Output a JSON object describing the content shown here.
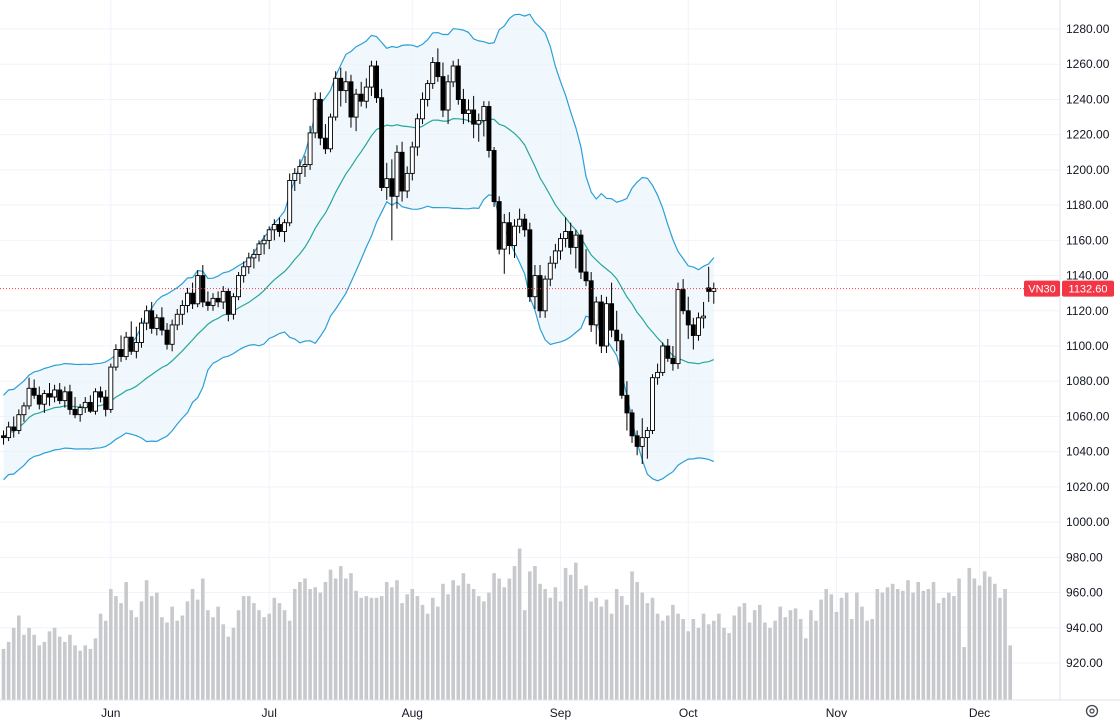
{
  "symbol": "VN30",
  "last_price_label": "1132.60",
  "colors": {
    "background": "#ffffff",
    "grid": "#f0f3fa",
    "band_fill": "#e8f3fb",
    "band_line": "#2a9fd6",
    "basis_line": "#26a69a",
    "candle": "#000000",
    "volume": "#c8c9cd",
    "tag": "#f23645",
    "price_line": "#f23645"
  },
  "chart_data": {
    "type": "candlestick",
    "y_axis": {
      "min": 905,
      "max": 1290,
      "ticks": [
        920,
        940,
        960,
        980,
        1000,
        1020,
        1040,
        1060,
        1080,
        1100,
        1120,
        1140,
        1160,
        1180,
        1200,
        1220,
        1240,
        1260,
        1280
      ],
      "tick_labels": [
        "920.00",
        "940.00",
        "960.00",
        "980.00",
        "1000.00",
        "1020.00",
        "1040.00",
        "1060.00",
        "1080.00",
        "1100.00",
        "1120.00",
        "1140.00",
        "1160.00",
        "1180.00",
        "1200.00",
        "1220.00",
        "1240.00",
        "1260.00",
        "1280.00"
      ]
    },
    "x_axis": {
      "months": [
        {
          "label": "Jun",
          "index": 21
        },
        {
          "label": "Jul",
          "index": 52
        },
        {
          "label": "Aug",
          "index": 80
        },
        {
          "label": "Sep",
          "index": 109
        },
        {
          "label": "Oct",
          "index": 134
        },
        {
          "label": "Nov",
          "index": 163
        },
        {
          "label": "Dec",
          "index": 191
        }
      ]
    },
    "last_price": 1132.6,
    "candles": {
      "columns": [
        "o",
        "h",
        "l",
        "c"
      ],
      "rows": [
        [
          1049,
          1052,
          1044,
          1048
        ],
        [
          1048,
          1057,
          1046,
          1054
        ],
        [
          1054,
          1060,
          1048,
          1052
        ],
        [
          1052,
          1064,
          1050,
          1061
        ],
        [
          1061,
          1068,
          1057,
          1066
        ],
        [
          1066,
          1082,
          1064,
          1076
        ],
        [
          1076,
          1081,
          1070,
          1072
        ],
        [
          1072,
          1077,
          1064,
          1067
        ],
        [
          1067,
          1075,
          1062,
          1073
        ],
        [
          1073,
          1079,
          1066,
          1071
        ],
        [
          1071,
          1078,
          1068,
          1075
        ],
        [
          1075,
          1079,
          1067,
          1069
        ],
        [
          1069,
          1077,
          1065,
          1074
        ],
        [
          1074,
          1078,
          1061,
          1064
        ],
        [
          1064,
          1071,
          1059,
          1061
        ],
        [
          1061,
          1067,
          1057,
          1065
        ],
        [
          1065,
          1071,
          1062,
          1068
        ],
        [
          1068,
          1072,
          1062,
          1063
        ],
        [
          1063,
          1076,
          1061,
          1074
        ],
        [
          1074,
          1077,
          1068,
          1071
        ],
        [
          1071,
          1075,
          1060,
          1064
        ],
        [
          1064,
          1090,
          1062,
          1088
        ],
        [
          1088,
          1101,
          1086,
          1098
        ],
        [
          1098,
          1106,
          1091,
          1094
        ],
        [
          1094,
          1108,
          1092,
          1105
        ],
        [
          1105,
          1114,
          1095,
          1097
        ],
        [
          1097,
          1111,
          1093,
          1102
        ],
        [
          1102,
          1116,
          1099,
          1113
        ],
        [
          1113,
          1123,
          1109,
          1120
        ],
        [
          1120,
          1125,
          1107,
          1110
        ],
        [
          1110,
          1118,
          1106,
          1116
        ],
        [
          1116,
          1122,
          1106,
          1109
        ],
        [
          1109,
          1113,
          1098,
          1101
        ],
        [
          1101,
          1115,
          1097,
          1112
        ],
        [
          1112,
          1121,
          1109,
          1118
        ],
        [
          1118,
          1126,
          1112,
          1123
        ],
        [
          1123,
          1133,
          1119,
          1130
        ],
        [
          1130,
          1136,
          1121,
          1124
        ],
        [
          1124,
          1143,
          1122,
          1140
        ],
        [
          1140,
          1146,
          1122,
          1125
        ],
        [
          1125,
          1131,
          1120,
          1123
        ],
        [
          1123,
          1130,
          1120,
          1127
        ],
        [
          1127,
          1131,
          1122,
          1125
        ],
        [
          1125,
          1134,
          1121,
          1131
        ],
        [
          1131,
          1133,
          1114,
          1118
        ],
        [
          1118,
          1130,
          1115,
          1128
        ],
        [
          1128,
          1142,
          1126,
          1140
        ],
        [
          1140,
          1148,
          1136,
          1145
        ],
        [
          1145,
          1153,
          1141,
          1150
        ],
        [
          1150,
          1155,
          1144,
          1152
        ],
        [
          1152,
          1160,
          1148,
          1158
        ],
        [
          1158,
          1163,
          1152,
          1160
        ],
        [
          1160,
          1168,
          1155,
          1166
        ],
        [
          1166,
          1172,
          1160,
          1169
        ],
        [
          1169,
          1173,
          1162,
          1165
        ],
        [
          1165,
          1172,
          1159,
          1170
        ],
        [
          1170,
          1198,
          1168,
          1194
        ],
        [
          1194,
          1201,
          1188,
          1198
        ],
        [
          1198,
          1206,
          1192,
          1202
        ],
        [
          1202,
          1208,
          1196,
          1203
        ],
        [
          1203,
          1225,
          1200,
          1221
        ],
        [
          1221,
          1244,
          1218,
          1240
        ],
        [
          1240,
          1244,
          1214,
          1218
        ],
        [
          1218,
          1226,
          1209,
          1212
        ],
        [
          1212,
          1232,
          1210,
          1230
        ],
        [
          1230,
          1256,
          1228,
          1252
        ],
        [
          1252,
          1258,
          1236,
          1245
        ],
        [
          1245,
          1256,
          1238,
          1250
        ],
        [
          1250,
          1254,
          1224,
          1230
        ],
        [
          1230,
          1246,
          1222,
          1243
        ],
        [
          1243,
          1250,
          1236,
          1239
        ],
        [
          1239,
          1252,
          1235,
          1247
        ],
        [
          1247,
          1262,
          1242,
          1259
        ],
        [
          1259,
          1262,
          1238,
          1241
        ],
        [
          1241,
          1246,
          1188,
          1190
        ],
        [
          1190,
          1204,
          1183,
          1195
        ],
        [
          1195,
          1206,
          1160,
          1185
        ],
        [
          1185,
          1214,
          1178,
          1210
        ],
        [
          1210,
          1216,
          1182,
          1188
        ],
        [
          1188,
          1202,
          1184,
          1198
        ],
        [
          1198,
          1216,
          1194,
          1213
        ],
        [
          1213,
          1232,
          1208,
          1229
        ],
        [
          1229,
          1244,
          1226,
          1240
        ],
        [
          1240,
          1251,
          1236,
          1249
        ],
        [
          1249,
          1264,
          1246,
          1261
        ],
        [
          1261,
          1269,
          1250,
          1253
        ],
        [
          1253,
          1261,
          1230,
          1234
        ],
        [
          1234,
          1254,
          1226,
          1250
        ],
        [
          1250,
          1262,
          1247,
          1259
        ],
        [
          1259,
          1263,
          1237,
          1240
        ],
        [
          1240,
          1246,
          1226,
          1232
        ],
        [
          1232,
          1240,
          1227,
          1234
        ],
        [
          1234,
          1242,
          1218,
          1226
        ],
        [
          1226,
          1232,
          1216,
          1228
        ],
        [
          1228,
          1239,
          1219,
          1236
        ],
        [
          1236,
          1239,
          1207,
          1211
        ],
        [
          1211,
          1213,
          1179,
          1182
        ],
        [
          1182,
          1185,
          1152,
          1155
        ],
        [
          1155,
          1175,
          1141,
          1170
        ],
        [
          1170,
          1176,
          1152,
          1157
        ],
        [
          1157,
          1172,
          1150,
          1168
        ],
        [
          1168,
          1178,
          1164,
          1172
        ],
        [
          1172,
          1175,
          1162,
          1166
        ],
        [
          1166,
          1170,
          1125,
          1128
        ],
        [
          1128,
          1146,
          1121,
          1140
        ],
        [
          1140,
          1146,
          1116,
          1120
        ],
        [
          1120,
          1140,
          1116,
          1138
        ],
        [
          1138,
          1151,
          1134,
          1147
        ],
        [
          1147,
          1158,
          1144,
          1154
        ],
        [
          1154,
          1164,
          1149,
          1161
        ],
        [
          1161,
          1173,
          1156,
          1165
        ],
        [
          1165,
          1170,
          1152,
          1156
        ],
        [
          1156,
          1166,
          1144,
          1163
        ],
        [
          1163,
          1166,
          1138,
          1142
        ],
        [
          1142,
          1155,
          1134,
          1137
        ],
        [
          1137,
          1142,
          1108,
          1112
        ],
        [
          1112,
          1128,
          1101,
          1125
        ],
        [
          1125,
          1129,
          1096,
          1100
        ],
        [
          1100,
          1128,
          1096,
          1124
        ],
        [
          1124,
          1136,
          1105,
          1109
        ],
        [
          1109,
          1120,
          1097,
          1103
        ],
        [
          1103,
          1107,
          1070,
          1072
        ],
        [
          1072,
          1080,
          1052,
          1062
        ],
        [
          1062,
          1064,
          1045,
          1049
        ],
        [
          1049,
          1052,
          1038,
          1043
        ],
        [
          1043,
          1059,
          1033,
          1048
        ],
        [
          1048,
          1054,
          1036,
          1052
        ],
        [
          1052,
          1084,
          1050,
          1082
        ],
        [
          1082,
          1090,
          1078,
          1085
        ],
        [
          1085,
          1102,
          1083,
          1100
        ],
        [
          1100,
          1104,
          1091,
          1093
        ],
        [
          1093,
          1100,
          1086,
          1090
        ],
        [
          1090,
          1136,
          1087,
          1132
        ],
        [
          1132,
          1138,
          1118,
          1120
        ],
        [
          1120,
          1128,
          1104,
          1112
        ],
        [
          1112,
          1116,
          1098,
          1106
        ],
        [
          1106,
          1119,
          1103,
          1116
        ],
        [
          1116,
          1125,
          1110,
          1117
        ],
        [
          1133,
          1145,
          1125,
          1131
        ],
        [
          1131,
          1136,
          1124,
          1132.6
        ]
      ]
    },
    "volume": [
      928,
      932,
      940,
      947,
      936,
      940,
      936,
      930,
      932,
      938,
      940,
      935,
      932,
      936,
      930,
      927,
      930,
      928,
      934,
      948,
      944,
      962,
      958,
      954,
      966,
      950,
      946,
      955,
      967,
      958,
      960,
      946,
      943,
      952,
      944,
      947,
      955,
      962,
      956,
      968,
      950,
      946,
      952,
      942,
      935,
      940,
      950,
      958,
      958,
      954,
      950,
      946,
      948,
      957,
      954,
      950,
      944,
      962,
      966,
      968,
      962,
      963,
      960,
      966,
      973,
      968,
      975,
      968,
      971,
      961,
      957,
      958,
      957,
      957,
      958,
      966,
      963,
      967,
      954,
      959,
      962,
      958,
      953,
      948,
      957,
      952,
      965,
      959,
      967,
      964,
      971,
      965,
      962,
      958,
      955,
      960,
      971,
      968,
      963,
      968,
      975,
      985,
      950,
      972,
      975,
      965,
      962,
      957,
      963,
      955,
      974,
      970,
      977,
      962,
      964,
      955,
      957,
      952,
      956,
      948,
      962,
      958,
      953,
      972,
      966,
      960,
      954,
      957,
      948,
      944,
      947,
      953,
      948,
      945,
      938,
      945,
      940,
      948,
      942,
      944,
      948,
      940,
      937,
      947,
      952,
      954,
      943,
      950,
      953,
      943,
      940,
      944,
      952,
      946,
      950,
      951,
      945,
      934,
      950,
      944,
      956,
      962,
      959,
      949,
      957,
      960,
      945,
      960,
      952,
      944,
      945,
      962,
      960,
      963,
      965,
      962,
      961,
      967,
      960,
      966,
      961,
      962,
      966,
      954,
      957,
      960,
      958,
      968,
      929,
      974,
      968,
      964,
      972,
      969,
      965,
      957,
      962,
      930
    ]
  }
}
